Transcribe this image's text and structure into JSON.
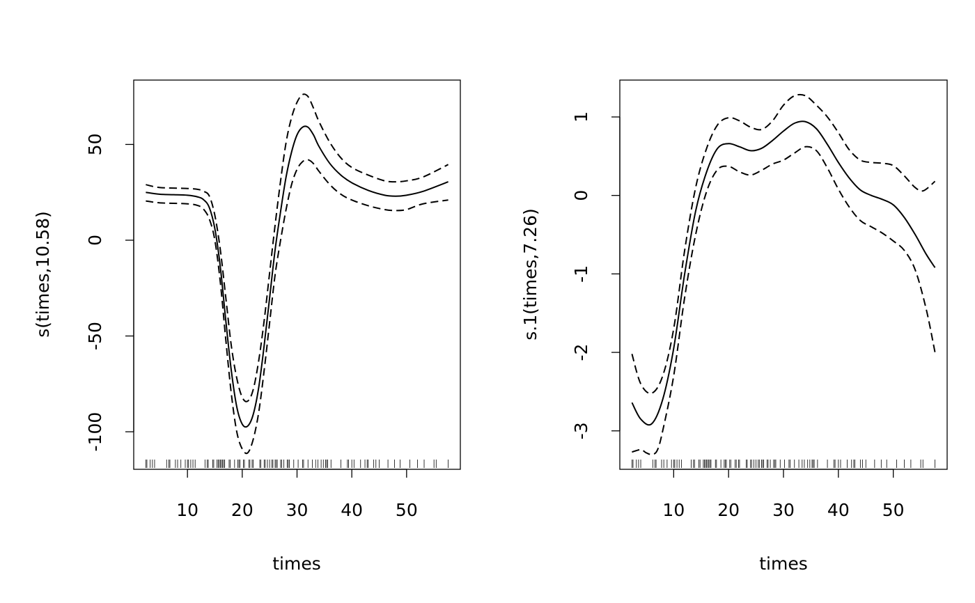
{
  "chart_data": [
    {
      "type": "line",
      "title": "",
      "xlabel": "times",
      "ylabel": "s(times,10.58)",
      "xlim": [
        0.19,
        59.81
      ],
      "ylim": [
        -119.6,
        83.6
      ],
      "xticks": [
        10,
        20,
        30,
        40,
        50
      ],
      "xtick_labels": [
        "10",
        "20",
        "30",
        "40",
        "50"
      ],
      "yticks": [
        -100,
        -50,
        0,
        50
      ],
      "ytick_labels": [
        "-100",
        "-50",
        "0",
        "50"
      ],
      "grid": false,
      "series": [
        {
          "name": "fit",
          "style": "solid",
          "x": [
            2.4,
            5,
            10,
            12,
            13,
            14,
            15,
            16,
            17,
            18,
            19,
            20,
            21,
            22,
            23,
            24,
            25,
            26,
            27,
            28,
            29,
            30,
            31,
            32,
            33,
            34,
            36,
            38,
            40,
            43,
            46,
            48,
            50,
            53,
            57.6
          ],
          "y": [
            25,
            24,
            23.5,
            22.5,
            21,
            17,
            6,
            -14,
            -42,
            -68,
            -87,
            -96,
            -97,
            -91,
            -77,
            -55,
            -30,
            -5,
            15,
            33,
            46,
            55,
            59,
            59,
            55,
            49,
            40,
            34,
            30,
            26,
            23.5,
            23,
            23.5,
            25.5,
            30.5
          ]
        },
        {
          "name": "upper",
          "style": "dashed",
          "x": [
            2.4,
            5,
            10,
            12,
            13,
            14,
            15,
            16,
            17,
            18,
            19,
            20,
            21,
            22,
            23,
            24,
            25,
            26,
            27,
            28,
            29,
            30,
            31,
            32,
            33,
            34,
            36,
            38,
            40,
            43,
            46,
            48,
            50,
            53,
            57.6
          ],
          "y": [
            29,
            27.5,
            27,
            26.5,
            25.5,
            23,
            13,
            -5,
            -30,
            -55,
            -72,
            -82,
            -84,
            -78,
            -63,
            -42,
            -17,
            8,
            31,
            51,
            64,
            72,
            76,
            75,
            69,
            62,
            51,
            43,
            38,
            34,
            31,
            30.5,
            31,
            33,
            39.5
          ]
        },
        {
          "name": "lower",
          "style": "dashed",
          "x": [
            2.4,
            5,
            10,
            12,
            13,
            14,
            15,
            16,
            17,
            18,
            19,
            20,
            21,
            22,
            23,
            24,
            25,
            26,
            27,
            28,
            29,
            30,
            31,
            32,
            33,
            34,
            36,
            38,
            40,
            43,
            46,
            48,
            50,
            53,
            57.6
          ],
          "y": [
            20.5,
            19.5,
            19,
            18,
            16,
            11,
            0,
            -22,
            -52,
            -80,
            -100,
            -109,
            -111,
            -104,
            -90,
            -68,
            -43,
            -18,
            0,
            16,
            29,
            37,
            41,
            42,
            40,
            36,
            29,
            24,
            21,
            18,
            16,
            15.5,
            16,
            19,
            21
          ]
        }
      ],
      "rug": [
        2.4,
        2.6,
        3.2,
        3.6,
        4.0,
        6.2,
        6.6,
        6.8,
        7.8,
        8.2,
        8.8,
        9.6,
        10.0,
        10.2,
        10.6,
        11.0,
        11.4,
        13.2,
        13.6,
        13.8,
        14.6,
        14.8,
        15.4,
        15.6,
        15.8,
        16.0,
        16.2,
        16.4,
        16.6,
        16.8,
        17.6,
        17.8,
        18.6,
        19.2,
        19.4,
        19.6,
        20.2,
        20.4,
        21.2,
        21.4,
        21.8,
        22.0,
        23.2,
        23.4,
        24.0,
        24.2,
        24.6,
        25.0,
        25.4,
        25.6,
        26.0,
        26.2,
        26.4,
        27.0,
        27.2,
        27.6,
        28.2,
        28.4,
        28.6,
        29.4,
        30.2,
        31.0,
        31.2,
        32.0,
        32.8,
        33.4,
        33.8,
        34.4,
        34.8,
        35.2,
        35.4,
        35.6,
        36.2,
        38.0,
        39.2,
        39.4,
        40.0,
        40.4,
        41.6,
        42.4,
        42.8,
        43.0,
        44.0,
        44.4,
        45.0,
        46.6,
        47.8,
        48.8,
        50.6,
        52.0,
        53.2,
        55.0,
        55.4,
        57.6
      ]
    },
    {
      "type": "line",
      "title": "",
      "xlabel": "times",
      "ylabel": "s.1(times,7.26)",
      "xlim": [
        0.19,
        59.81
      ],
      "ylim": [
        -3.49,
        1.47
      ],
      "xticks": [
        10,
        20,
        30,
        40,
        50
      ],
      "xtick_labels": [
        "10",
        "20",
        "30",
        "40",
        "50"
      ],
      "yticks": [
        -3,
        -2,
        -1,
        0,
        1
      ],
      "ytick_labels": [
        "-3",
        "-2",
        "-1",
        "0",
        "1"
      ],
      "grid": false,
      "series": [
        {
          "name": "fit",
          "style": "solid",
          "x": [
            2.4,
            4,
            6,
            8,
            10,
            12,
            14,
            16,
            18,
            20,
            22,
            24,
            26,
            28,
            30,
            32,
            34,
            36,
            38,
            40,
            42,
            44,
            46,
            48,
            50,
            52,
            54,
            56,
            57.6
          ],
          "y": [
            -2.64,
            -2.85,
            -2.91,
            -2.6,
            -1.95,
            -1.0,
            -0.2,
            0.3,
            0.6,
            0.66,
            0.62,
            0.57,
            0.6,
            0.7,
            0.82,
            0.92,
            0.94,
            0.85,
            0.65,
            0.42,
            0.22,
            0.07,
            0.0,
            -0.05,
            -0.12,
            -0.28,
            -0.5,
            -0.75,
            -0.92
          ]
        },
        {
          "name": "upper",
          "style": "dashed",
          "x": [
            2.4,
            4,
            6,
            8,
            10,
            12,
            14,
            16,
            18,
            20,
            22,
            24,
            26,
            28,
            30,
            32,
            34,
            36,
            38,
            40,
            42,
            44,
            46,
            48,
            50,
            52,
            54,
            55.5,
            57.6
          ],
          "y": [
            -2.02,
            -2.4,
            -2.52,
            -2.3,
            -1.7,
            -0.7,
            0.1,
            0.6,
            0.9,
            0.99,
            0.95,
            0.87,
            0.84,
            0.95,
            1.15,
            1.27,
            1.27,
            1.15,
            1.0,
            0.8,
            0.58,
            0.45,
            0.42,
            0.41,
            0.38,
            0.25,
            0.1,
            0.06,
            0.18
          ]
        },
        {
          "name": "lower",
          "style": "dashed",
          "x": [
            2.4,
            4,
            5,
            6,
            7,
            8,
            10,
            12,
            14,
            16,
            18,
            20,
            22,
            24,
            26,
            28,
            30,
            32,
            34,
            36,
            38,
            40,
            42,
            44,
            46,
            48,
            50,
            52,
            54,
            56,
            57.6
          ],
          "y": [
            -3.27,
            -3.24,
            -3.28,
            -3.3,
            -3.25,
            -3.0,
            -2.3,
            -1.3,
            -0.5,
            0.05,
            0.33,
            0.37,
            0.3,
            0.26,
            0.32,
            0.4,
            0.45,
            0.54,
            0.62,
            0.57,
            0.35,
            0.08,
            -0.15,
            -0.32,
            -0.4,
            -0.48,
            -0.58,
            -0.7,
            -0.95,
            -1.45,
            -2.0
          ]
        }
      ],
      "rug": [
        2.4,
        2.6,
        3.2,
        3.6,
        4.0,
        6.2,
        6.6,
        6.8,
        7.8,
        8.2,
        8.8,
        9.6,
        10.0,
        10.2,
        10.6,
        11.0,
        11.4,
        13.2,
        13.6,
        13.8,
        14.6,
        14.8,
        15.4,
        15.6,
        15.8,
        16.0,
        16.2,
        16.4,
        16.6,
        16.8,
        17.6,
        17.8,
        18.6,
        19.2,
        19.4,
        19.6,
        20.2,
        20.4,
        21.2,
        21.4,
        21.8,
        22.0,
        23.2,
        23.4,
        24.0,
        24.2,
        24.6,
        25.0,
        25.4,
        25.6,
        26.0,
        26.2,
        26.4,
        27.0,
        27.2,
        27.6,
        28.2,
        28.4,
        28.6,
        29.4,
        30.2,
        31.0,
        31.2,
        32.0,
        32.8,
        33.4,
        33.8,
        34.4,
        34.8,
        35.2,
        35.4,
        35.6,
        36.2,
        38.0,
        39.2,
        39.4,
        40.0,
        40.4,
        41.6,
        42.4,
        42.8,
        43.0,
        44.0,
        44.4,
        45.0,
        46.6,
        47.8,
        48.8,
        50.6,
        52.0,
        53.2,
        55.0,
        55.4,
        57.6
      ]
    }
  ]
}
